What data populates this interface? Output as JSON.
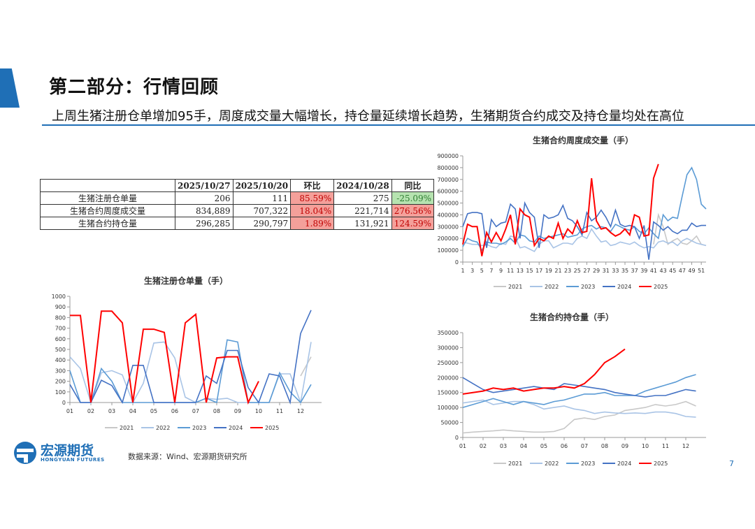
{
  "header": {
    "title": "第二部分：行情回顾",
    "subtitle": "上周生猪注册仓单增加95手，周度成交量大幅增长，持仓量延续增长趋势，生猪期货合约成交及持仓量均处在高位"
  },
  "table": {
    "headers": [
      "",
      "2025/10/27",
      "2025/10/20",
      "环比",
      "2024/10/28",
      "同比"
    ],
    "rows": [
      [
        "生猪注册仓单量",
        "206",
        "111",
        "85.59%",
        "275",
        "-25.09%"
      ],
      [
        "生猪合约周度成交量",
        "834,889",
        "707,322",
        "18.04%",
        "221,714",
        "276.56%"
      ],
      [
        "生猪合约持仓量",
        "296,285",
        "290,797",
        "1.89%",
        "131,921",
        "124.59%"
      ]
    ]
  },
  "source": "数据来源：Wind、宏源期货研究所",
  "logo": {
    "cn": "宏源期货",
    "en": "HONGYUAN FUTURES"
  },
  "page_number": "7",
  "colors": {
    "2021": "#c8c8c8",
    "2022": "#a9c4e6",
    "2023": "#5b9bd5",
    "2024": "#4472c4",
    "2025": "#ff0000",
    "brand": "#1f6fb6"
  },
  "chart_data": [
    {
      "id": "weekly-volume",
      "type": "line",
      "title": "生猪合约周度成交量（手）",
      "ylim": [
        0,
        900000
      ],
      "yticks": [
        "0",
        "100000",
        "200000",
        "300000",
        "400000",
        "500000",
        "600000",
        "700000",
        "800000",
        "900000"
      ],
      "xticks": [
        "1",
        "3",
        "5",
        "7",
        "9",
        "11",
        "13",
        "15",
        "17",
        "19",
        "21",
        "23",
        "25",
        "27",
        "29",
        "31",
        "33",
        "35",
        "37",
        "39",
        "41",
        "43",
        "45",
        "47",
        "49",
        "51"
      ],
      "x": [
        1,
        2,
        3,
        4,
        5,
        6,
        7,
        8,
        9,
        10,
        11,
        12,
        13,
        14,
        15,
        16,
        17,
        18,
        19,
        20,
        21,
        22,
        23,
        24,
        25,
        26,
        27,
        28,
        29,
        30,
        31,
        32,
        33,
        34,
        35,
        36,
        37,
        38,
        39,
        40,
        41,
        42,
        43,
        44,
        45,
        46,
        47,
        48,
        49,
        50,
        51,
        52
      ],
      "series": [
        {
          "name": "2021",
          "values": [
            null,
            null,
            null,
            null,
            null,
            null,
            null,
            null,
            null,
            null,
            null,
            null,
            null,
            null,
            null,
            null,
            null,
            null,
            null,
            null,
            null,
            null,
            null,
            null,
            null,
            null,
            null,
            null,
            null,
            null,
            null,
            null,
            null,
            null,
            null,
            null,
            null,
            null,
            null,
            null,
            150000,
            400000,
            300000,
            150000,
            180000,
            200000,
            160000,
            150000,
            180000,
            220000,
            150000,
            140000
          ]
        },
        {
          "name": "2022",
          "values": [
            170000,
            160000,
            150000,
            150000,
            140000,
            150000,
            130000,
            120000,
            160000,
            150000,
            220000,
            210000,
            120000,
            130000,
            110000,
            90000,
            150000,
            180000,
            180000,
            120000,
            140000,
            160000,
            160000,
            150000,
            200000,
            220000,
            200000,
            280000,
            220000,
            170000,
            180000,
            140000,
            150000,
            170000,
            160000,
            150000,
            170000,
            140000,
            120000,
            130000,
            120000,
            170000,
            180000,
            160000,
            170000,
            140000,
            180000,
            200000,
            180000,
            160000,
            150000,
            140000
          ]
        },
        {
          "name": "2023",
          "values": [
            130000,
            200000,
            180000,
            170000,
            100000,
            170000,
            160000,
            160000,
            150000,
            170000,
            200000,
            160000,
            230000,
            220000,
            180000,
            170000,
            220000,
            200000,
            210000,
            220000,
            230000,
            240000,
            210000,
            220000,
            230000,
            280000,
            300000,
            310000,
            280000,
            300000,
            290000,
            260000,
            320000,
            300000,
            280000,
            270000,
            300000,
            260000,
            240000,
            290000,
            240000,
            200000,
            400000,
            350000,
            380000,
            370000,
            560000,
            740000,
            800000,
            700000,
            490000,
            450000
          ]
        },
        {
          "name": "2024",
          "values": [
            300000,
            410000,
            420000,
            420000,
            410000,
            120000,
            360000,
            300000,
            330000,
            340000,
            490000,
            450000,
            200000,
            500000,
            420000,
            380000,
            120000,
            400000,
            370000,
            380000,
            400000,
            480000,
            370000,
            350000,
            300000,
            230000,
            420000,
            350000,
            380000,
            440000,
            380000,
            300000,
            440000,
            320000,
            300000,
            310000,
            300000,
            200000,
            310000,
            20000,
            340000,
            310000,
            270000,
            300000,
            260000,
            240000,
            270000,
            270000,
            330000,
            300000,
            310000,
            310000
          ]
        },
        {
          "name": "2025",
          "values": [
            150000,
            320000,
            300000,
            300000,
            50000,
            250000,
            170000,
            250000,
            180000,
            280000,
            400000,
            150000,
            450000,
            400000,
            380000,
            140000,
            200000,
            180000,
            220000,
            200000,
            330000,
            200000,
            280000,
            240000,
            350000,
            250000,
            260000,
            710000,
            350000,
            280000,
            290000,
            250000,
            220000,
            240000,
            280000,
            230000,
            400000,
            380000,
            220000,
            230000,
            710000,
            830000,
            null,
            null,
            null,
            null,
            null,
            null,
            null,
            null,
            null,
            null
          ]
        }
      ]
    },
    {
      "id": "warehouse-receipts",
      "type": "line",
      "title": "生猪注册仓单量（手）",
      "ylim": [
        0,
        1000
      ],
      "yticks": [
        "0",
        "100",
        "200",
        "300",
        "400",
        "500",
        "600",
        "700",
        "800",
        "900",
        "1000"
      ],
      "xticks": [
        "01",
        "02",
        "03",
        "04",
        "05",
        "06",
        "07",
        "08",
        "09",
        "10",
        "11",
        "12"
      ],
      "x": [
        1,
        1.5,
        2,
        2.5,
        3,
        3.5,
        4,
        4.5,
        5,
        5.5,
        6,
        6.5,
        7,
        7.5,
        8,
        8.5,
        9,
        9.5,
        10,
        10.5,
        11,
        11.5,
        12,
        12.5
      ],
      "series": [
        {
          "name": "2021",
          "values": [
            null,
            null,
            null,
            null,
            null,
            null,
            null,
            null,
            null,
            null,
            null,
            null,
            null,
            null,
            null,
            null,
            null,
            null,
            null,
            null,
            null,
            null,
            250,
            430
          ]
        },
        {
          "name": "2022",
          "values": [
            430,
            320,
            0,
            280,
            300,
            260,
            0,
            180,
            560,
            570,
            420,
            50,
            0,
            40,
            30,
            40,
            0,
            0,
            0,
            0,
            270,
            270,
            0,
            570
          ]
        },
        {
          "name": "2023",
          "values": [
            300,
            0,
            0,
            320,
            200,
            0,
            0,
            0,
            0,
            0,
            0,
            0,
            0,
            40,
            0,
            590,
            570,
            0,
            0,
            0,
            280,
            100,
            0,
            170
          ]
        },
        {
          "name": "2024",
          "values": [
            170,
            0,
            0,
            210,
            160,
            0,
            350,
            350,
            0,
            0,
            0,
            0,
            0,
            250,
            180,
            490,
            490,
            140,
            0,
            270,
            250,
            0,
            650,
            870
          ]
        },
        {
          "name": "2025",
          "values": [
            820,
            820,
            0,
            860,
            860,
            750,
            0,
            690,
            690,
            660,
            0,
            750,
            830,
            0,
            420,
            430,
            430,
            0,
            200,
            null,
            null,
            null,
            null,
            null
          ]
        }
      ]
    },
    {
      "id": "open-interest",
      "type": "line",
      "title": "生猪合约持仓量（手）",
      "ylim": [
        0,
        350000
      ],
      "yticks": [
        "0",
        "50000",
        "100000",
        "150000",
        "200000",
        "250000",
        "300000",
        "350000"
      ],
      "xticks": [
        "01",
        "02",
        "03",
        "04",
        "05",
        "06",
        "07",
        "08",
        "09",
        "10",
        "11",
        "12"
      ],
      "x": [
        1,
        1.5,
        2,
        2.5,
        3,
        3.5,
        4,
        4.5,
        5,
        5.5,
        6,
        6.5,
        7,
        7.5,
        8,
        8.5,
        9,
        9.5,
        10,
        10.5,
        11,
        11.5,
        12,
        12.5
      ],
      "series": [
        {
          "name": "2021",
          "values": [
            15000,
            18000,
            20000,
            22000,
            25000,
            22000,
            20000,
            18000,
            18000,
            20000,
            30000,
            60000,
            65000,
            60000,
            70000,
            75000,
            90000,
            95000,
            100000,
            110000,
            105000,
            110000,
            120000,
            105000
          ]
        },
        {
          "name": "2022",
          "values": [
            115000,
            120000,
            125000,
            110000,
            115000,
            120000,
            120000,
            110000,
            95000,
            100000,
            105000,
            95000,
            90000,
            80000,
            85000,
            82000,
            80000,
            82000,
            80000,
            85000,
            85000,
            80000,
            70000,
            68000
          ]
        },
        {
          "name": "2023",
          "values": [
            100000,
            110000,
            120000,
            130000,
            120000,
            110000,
            120000,
            115000,
            110000,
            120000,
            125000,
            135000,
            145000,
            145000,
            150000,
            140000,
            140000,
            140000,
            155000,
            165000,
            175000,
            185000,
            200000,
            210000
          ]
        },
        {
          "name": "2024",
          "values": [
            200000,
            180000,
            160000,
            150000,
            155000,
            160000,
            165000,
            170000,
            165000,
            160000,
            180000,
            175000,
            170000,
            165000,
            160000,
            150000,
            145000,
            140000,
            135000,
            140000,
            140000,
            150000,
            160000,
            155000
          ]
        },
        {
          "name": "2025",
          "values": [
            145000,
            150000,
            155000,
            165000,
            160000,
            165000,
            155000,
            160000,
            165000,
            165000,
            170000,
            165000,
            180000,
            210000,
            250000,
            270000,
            295000,
            null,
            null,
            null,
            null,
            null,
            null,
            null
          ]
        }
      ]
    }
  ]
}
